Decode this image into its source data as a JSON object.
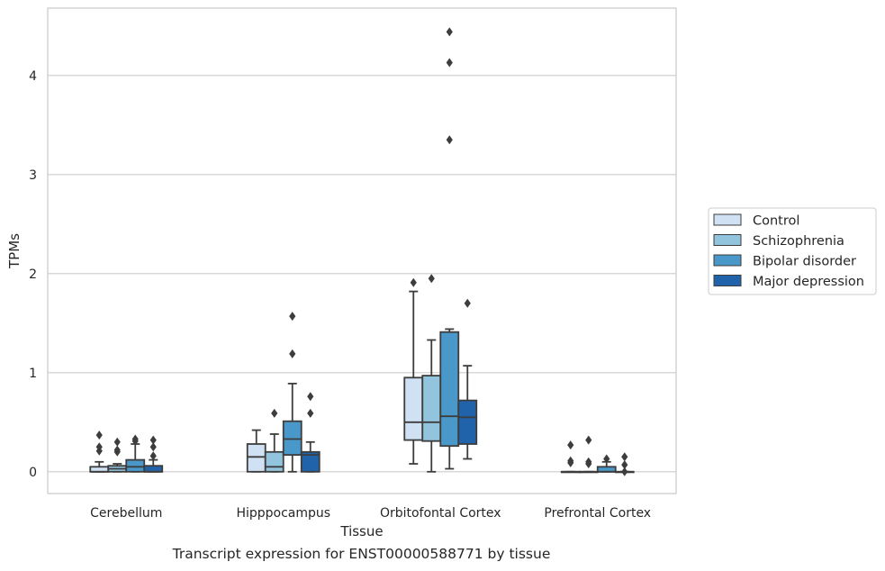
{
  "caption": "Transcript expression for ENST00000588771 by tissue",
  "colors": {
    "Control": "#cfe1f2",
    "Schizophrenia": "#93c4de",
    "Bipolar disorder": "#4a98c9",
    "Major depression": "#2163aa",
    "box_edge": "#3d3d3d",
    "grid": "#cccccc",
    "frame": "#cccccc"
  },
  "chart_data": {
    "type": "box",
    "title": "",
    "xlabel": "Tissue",
    "ylabel": "TPMs",
    "ylim": [
      -0.22,
      4.68
    ],
    "yticks": [
      0,
      1,
      2,
      3,
      4
    ],
    "grid": "horizontal",
    "legend_position": "right",
    "categories": [
      "Cerebellum",
      "Hipppocampus",
      "Orbitofontal Cortex",
      "Prefrontal Cortex"
    ],
    "series": [
      {
        "name": "Control",
        "boxes": [
          {
            "q1": 0.0,
            "median": 0.0,
            "q3": 0.05,
            "whislo": 0.0,
            "whishi": 0.1,
            "fliers": [
              0.21,
              0.25,
              0.37
            ]
          },
          {
            "q1": 0.0,
            "median": 0.15,
            "q3": 0.28,
            "whislo": 0.0,
            "whishi": 0.42,
            "fliers": []
          },
          {
            "q1": 0.32,
            "median": 0.5,
            "q3": 0.95,
            "whislo": 0.08,
            "whishi": 1.82,
            "fliers": [
              1.91
            ]
          },
          {
            "q1": 0.0,
            "median": 0.0,
            "q3": 0.0,
            "whislo": 0.0,
            "whishi": 0.0,
            "fliers": [
              0.09,
              0.11,
              0.27
            ]
          }
        ]
      },
      {
        "name": "Schizophrenia",
        "boxes": [
          {
            "q1": 0.0,
            "median": 0.03,
            "q3": 0.06,
            "whislo": 0.0,
            "whishi": 0.08,
            "fliers": [
              0.2,
              0.22,
              0.3
            ]
          },
          {
            "q1": 0.0,
            "median": 0.05,
            "q3": 0.2,
            "whislo": 0.0,
            "whishi": 0.38,
            "fliers": [
              0.59
            ]
          },
          {
            "q1": 0.31,
            "median": 0.5,
            "q3": 0.97,
            "whislo": 0.0,
            "whishi": 1.33,
            "fliers": [
              1.95
            ]
          },
          {
            "q1": 0.0,
            "median": 0.0,
            "q3": 0.0,
            "whislo": 0.0,
            "whishi": 0.0,
            "fliers": [
              0.08,
              0.1,
              0.32
            ]
          }
        ]
      },
      {
        "name": "Bipolar disorder",
        "boxes": [
          {
            "q1": 0.0,
            "median": 0.05,
            "q3": 0.12,
            "whislo": 0.0,
            "whishi": 0.28,
            "fliers": [
              0.31,
              0.33
            ]
          },
          {
            "q1": 0.17,
            "median": 0.33,
            "q3": 0.51,
            "whislo": 0.0,
            "whishi": 0.89,
            "fliers": [
              1.19,
              1.57
            ]
          },
          {
            "q1": 0.26,
            "median": 0.56,
            "q3": 1.41,
            "whislo": 0.03,
            "whishi": 1.44,
            "fliers": [
              3.35,
              4.13,
              4.44
            ]
          },
          {
            "q1": 0.0,
            "median": 0.0,
            "q3": 0.05,
            "whislo": 0.0,
            "whishi": 0.1,
            "fliers": [
              0.13
            ]
          }
        ]
      },
      {
        "name": "Major depression",
        "boxes": [
          {
            "q1": 0.0,
            "median": 0.0,
            "q3": 0.06,
            "whislo": 0.0,
            "whishi": 0.12,
            "fliers": [
              0.16,
              0.25,
              0.32
            ]
          },
          {
            "q1": 0.0,
            "median": 0.17,
            "q3": 0.2,
            "whislo": 0.0,
            "whishi": 0.3,
            "fliers": [
              0.59,
              0.76
            ]
          },
          {
            "q1": 0.28,
            "median": 0.55,
            "q3": 0.72,
            "whislo": 0.13,
            "whishi": 1.07,
            "fliers": [
              1.7
            ]
          },
          {
            "q1": 0.0,
            "median": 0.0,
            "q3": 0.0,
            "whislo": 0.0,
            "whishi": 0.0,
            "fliers": [
              0.0,
              0.07,
              0.15
            ]
          }
        ]
      }
    ]
  }
}
